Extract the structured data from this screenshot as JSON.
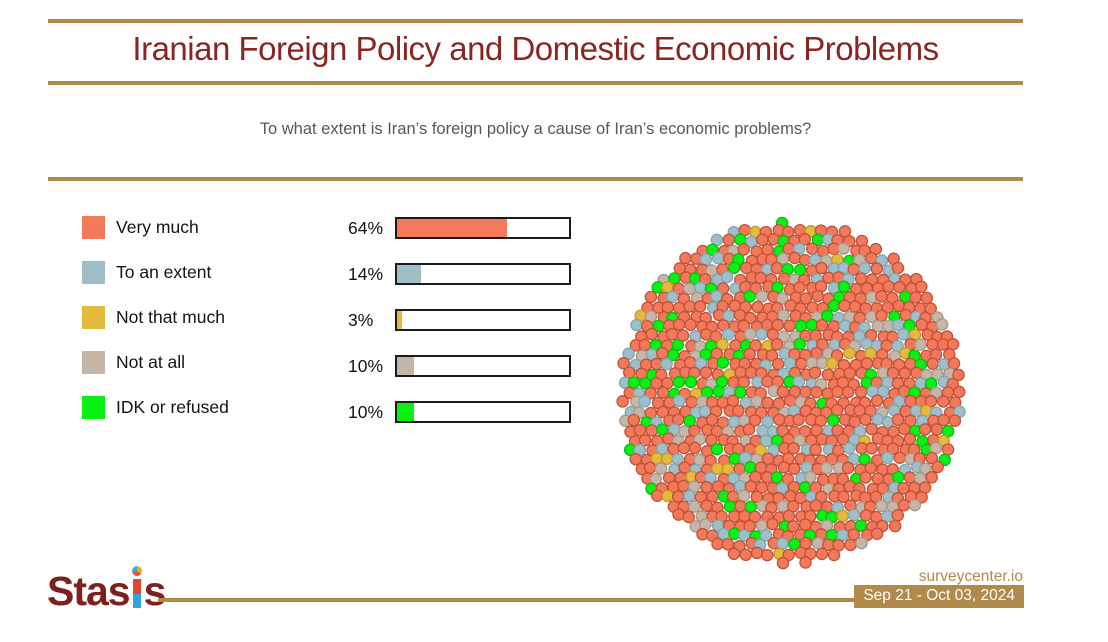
{
  "title": "Iranian Foreign Policy and Domestic Economic Problems",
  "question": "To what extent is Iran’s foreign policy a cause of Iran’s economic problems?",
  "chart_data": {
    "type": "bar",
    "title": "Iranian Foreign Policy and Domestic Economic Problems",
    "subtitle": "To what extent is Iran’s foreign policy a cause of Iran’s economic problems?",
    "categories": [
      "Very much",
      "To an extent",
      "Not that much",
      "Not at all",
      "IDK or refused"
    ],
    "values": [
      64,
      14,
      3,
      10,
      10
    ],
    "value_labels": [
      "64%",
      "14%",
      "3%",
      "10%",
      "10%"
    ],
    "colors": [
      "#F4795B",
      "#9FBEC7",
      "#E4B93C",
      "#C6B6A8",
      "#0BF014"
    ],
    "stroke_colors": [
      "#C0523A",
      "#7FA6B0",
      "#C2982A",
      "#A8978A",
      "#09BE10"
    ],
    "xlim": [
      0,
      100
    ],
    "legend_position": "left",
    "grid": false,
    "companion_visual": "dot-cluster-circle"
  },
  "footer": {
    "brand": "Stasis",
    "brand_prefix": "Stas",
    "brand_suffix": "s",
    "source": "surveycenter.io",
    "date_range": "Sep 21 - Oct 03, 2024"
  },
  "theme": {
    "title_color": "#8B2522",
    "rule_color": "#B1894B",
    "subtitle_color": "#575757",
    "bar_border_color": "#1b1b1b",
    "badge_bg": "#B1894B",
    "badge_text_color": "#FFFFFF"
  }
}
